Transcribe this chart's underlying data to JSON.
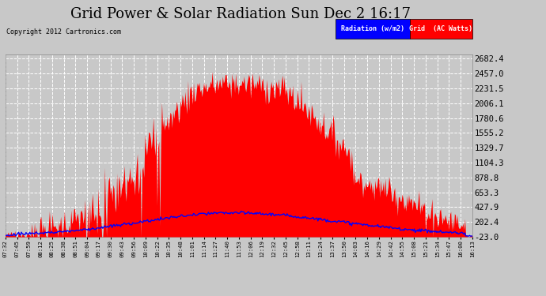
{
  "title": "Grid Power & Solar Radiation Sun Dec 2 16:17",
  "copyright": "Copyright 2012 Cartronics.com",
  "legend_labels": [
    "Radiation (w/m2)",
    "Grid  (AC Watts)"
  ],
  "legend_colors": [
    "blue",
    "red"
  ],
  "yticks": [
    2682.4,
    2457.0,
    2231.5,
    2006.1,
    1780.6,
    1555.2,
    1329.7,
    1104.3,
    878.8,
    653.3,
    427.9,
    202.4,
    -23.0
  ],
  "ymin": -23.0,
  "ymax": 2682.4,
  "background_color": "#c8c8c8",
  "plot_bg_color": "#c8c8c8",
  "grid_color": "#ffffff",
  "bar_color": "red",
  "line_color": "blue",
  "title_fontsize": 13,
  "xtick_labels": [
    "07:32",
    "07:45",
    "07:59",
    "08:12",
    "08:25",
    "08:38",
    "08:51",
    "09:04",
    "09:17",
    "09:30",
    "09:43",
    "09:56",
    "10:09",
    "10:22",
    "10:35",
    "10:48",
    "11:01",
    "11:14",
    "11:27",
    "11:40",
    "11:53",
    "12:06",
    "12:19",
    "12:32",
    "12:45",
    "12:58",
    "13:11",
    "13:24",
    "13:37",
    "13:50",
    "14:03",
    "14:16",
    "14:29",
    "14:42",
    "14:55",
    "15:08",
    "15:21",
    "15:34",
    "15:47",
    "16:00",
    "16:13"
  ]
}
